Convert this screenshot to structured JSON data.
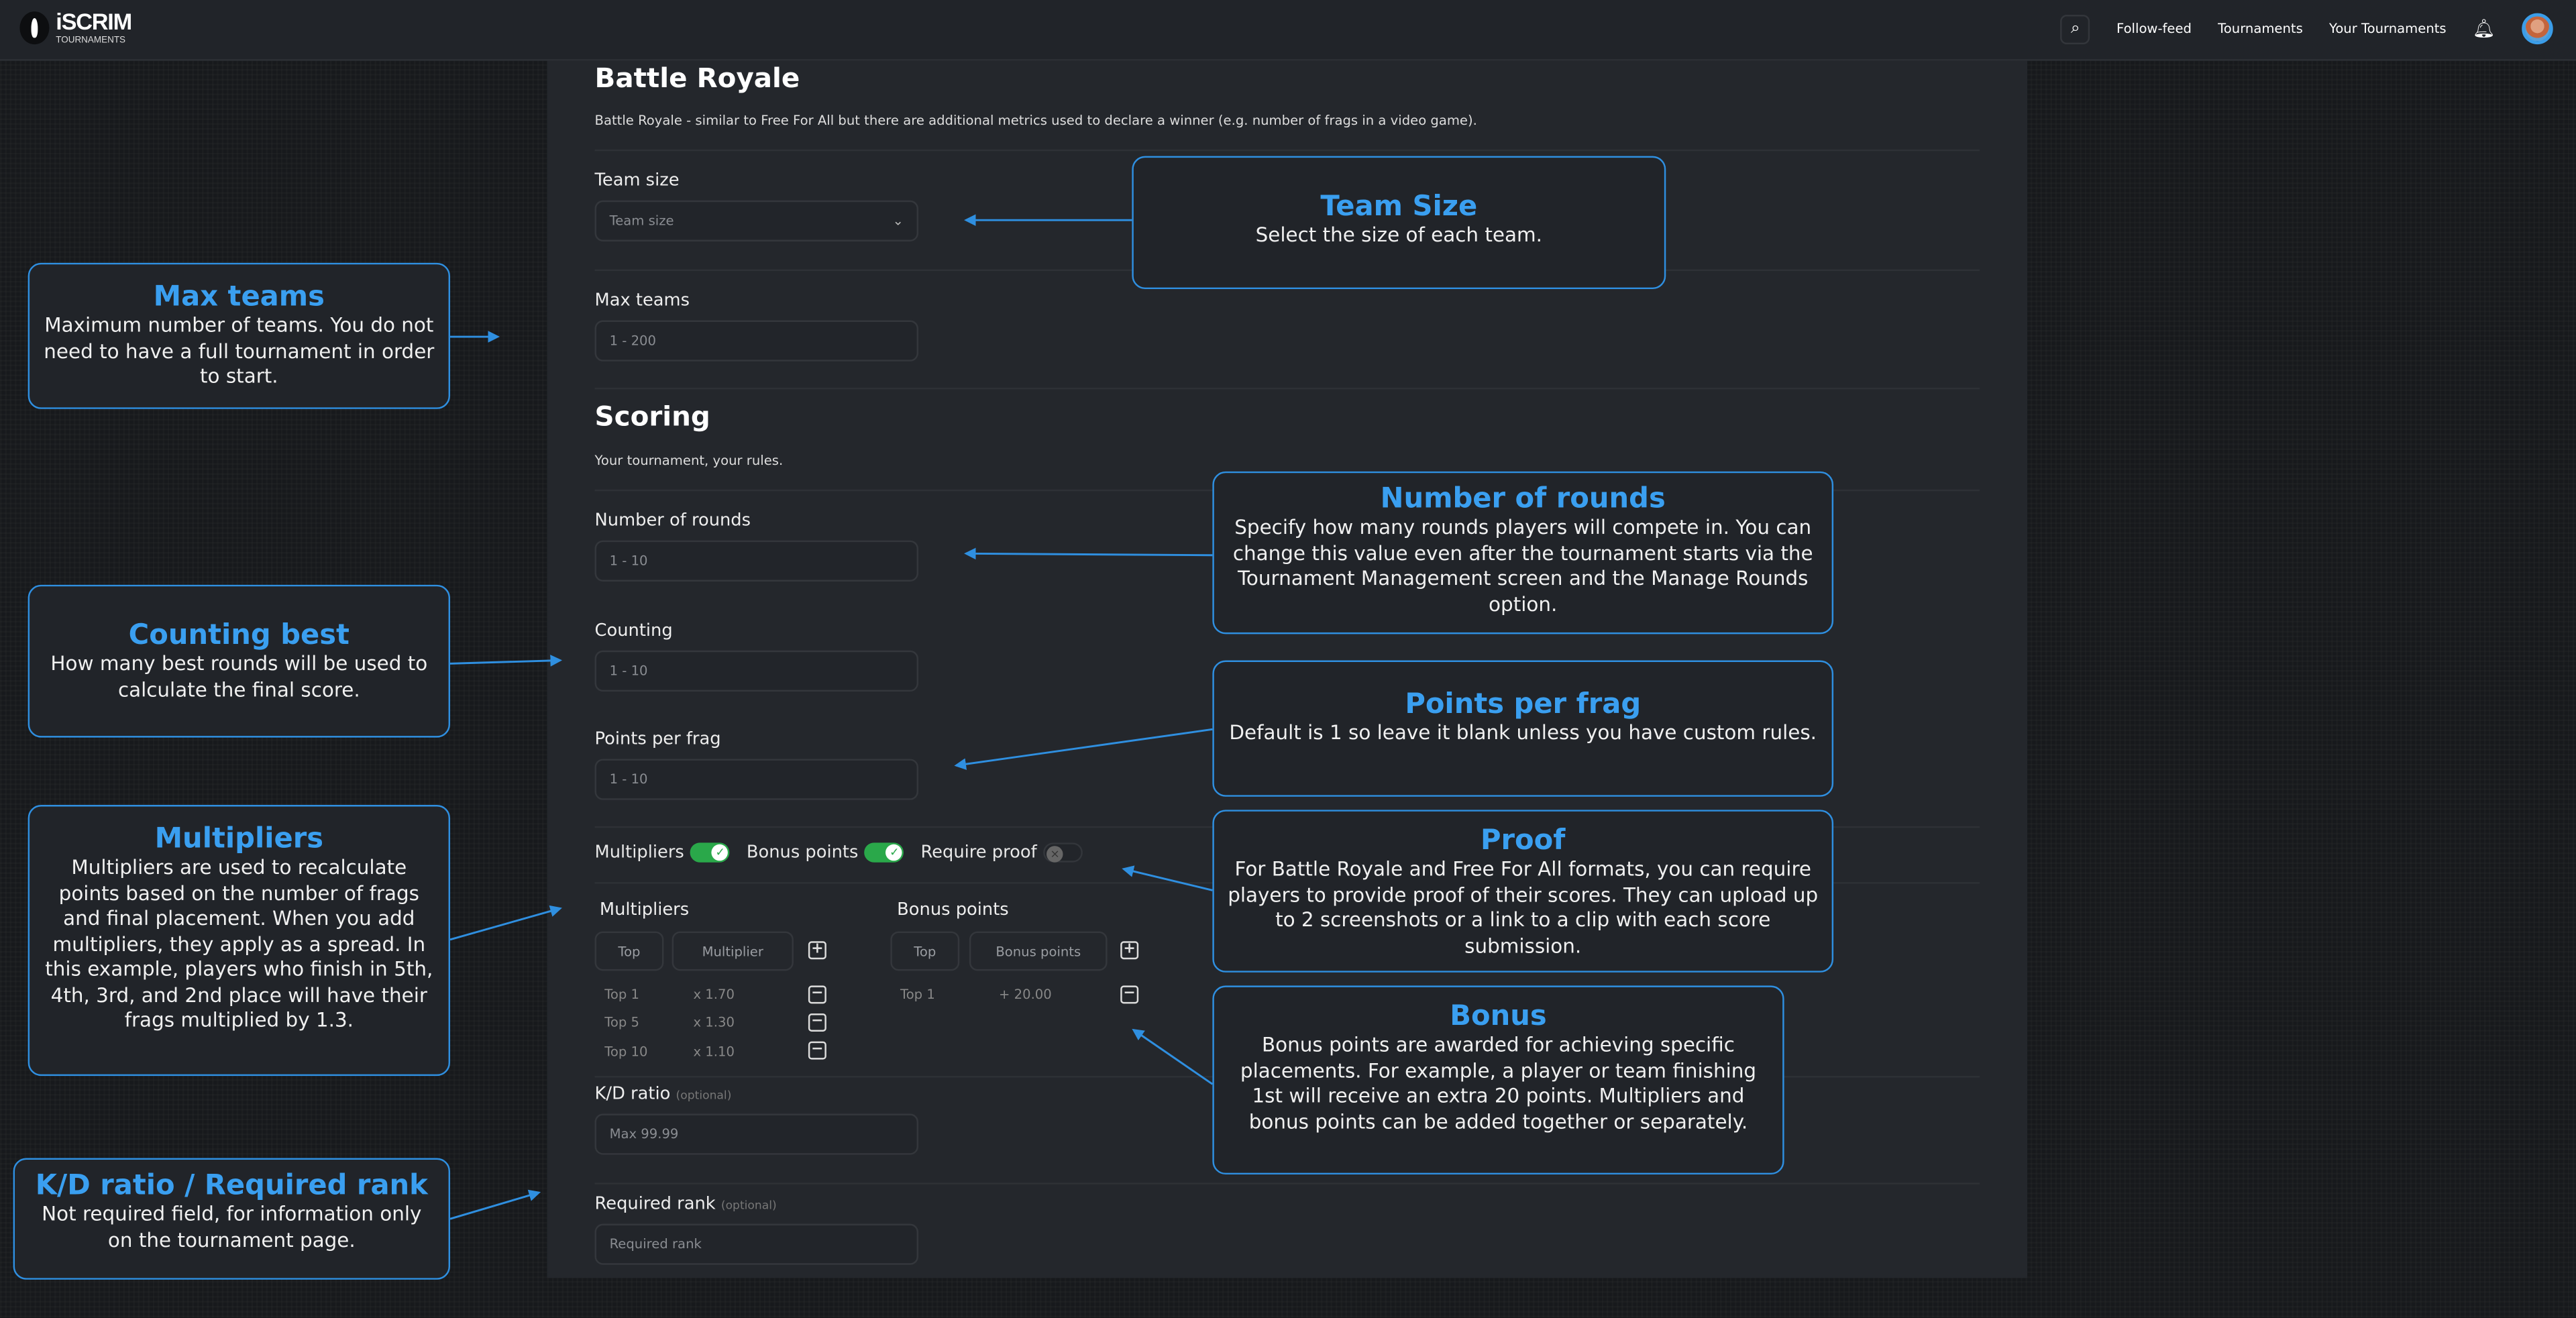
{
  "header": {
    "logo_main": "iSCRIM",
    "logo_sub": "TOURNAMENTS",
    "nav": [
      "Follow-feed",
      "Tournaments",
      "Your Tournaments"
    ],
    "icons": [
      "search-icon",
      "bell-icon",
      "avatar"
    ]
  },
  "form": {
    "title": "Battle Royale",
    "description": "Battle Royale - similar to Free For All but there are additional metrics used to declare a winner (e.g. number of frags in a video game).",
    "team_size": {
      "label": "Team size",
      "placeholder": "Team size"
    },
    "max_teams": {
      "label": "Max teams",
      "placeholder": "1 - 200"
    },
    "scoring_title": "Scoring",
    "scoring_sub": "Your tournament, your rules.",
    "rounds": {
      "label": "Number of rounds",
      "placeholder": "1 - 10"
    },
    "counting": {
      "label": "Counting",
      "placeholder": "1 - 10"
    },
    "points_per_frag": {
      "label": "Points per frag",
      "placeholder": "1 - 10"
    },
    "toggles": [
      {
        "label": "Multipliers",
        "on": true
      },
      {
        "label": "Bonus points",
        "on": true
      },
      {
        "label": "Require proof",
        "on": false
      }
    ],
    "multipliers": {
      "title": "Multipliers",
      "top_placeholder": "Top",
      "value_placeholder": "Multiplier",
      "rows": [
        {
          "top": "Top 1",
          "value": "x 1.70"
        },
        {
          "top": "Top 5",
          "value": "x 1.30"
        },
        {
          "top": "Top 10",
          "value": "x 1.10"
        }
      ]
    },
    "bonus": {
      "title": "Bonus points",
      "top_placeholder": "Top",
      "value_placeholder": "Bonus points",
      "rows": [
        {
          "top": "Top 1",
          "value": "+ 20.00"
        }
      ]
    },
    "kd": {
      "label": "K/D ratio",
      "optional": "(optional)",
      "placeholder": "Max 99.99"
    },
    "rank": {
      "label": "Required rank",
      "optional": "(optional)",
      "placeholder": "Required rank"
    }
  },
  "callouts": {
    "max_teams": {
      "title": "Max teams",
      "text": "Maximum number of teams. You do not need to have a full tournament in order to start."
    },
    "team_size": {
      "title": "Team Size",
      "text": "Select the size of each team."
    },
    "counting": {
      "title": "Counting best",
      "text": "How many best rounds will be used to calculate the final score."
    },
    "multipliers": {
      "title": "Multipliers",
      "text": "Multipliers are used to recalculate points based on the number of frags and final placement. When you add multipliers, they apply as a spread. In this example, players who finish in 5th, 4th, 3rd, and 2nd place will have their frags multiplied by 1.3."
    },
    "kd": {
      "title": "K/D ratio / Required rank",
      "text": "Not required field, for information only on the tournament page."
    },
    "rounds": {
      "title": "Number of rounds",
      "text": "Specify how many rounds players will compete in. You can change this value even after the tournament starts via the Tournament Management screen and the Manage Rounds option."
    },
    "ppf": {
      "title": "Points per frag",
      "text": "Default is 1 so leave it blank unless you have custom rules."
    },
    "proof": {
      "title": "Proof",
      "text": "For Battle Royale and Free For All formats, you can require players to provide proof of their scores. They can upload up to 2 screenshots or a link to a clip with each score submission."
    },
    "bonus": {
      "title": "Bonus",
      "text": "Bonus points are awarded for achieving specific placements. For example, a player or team finishing 1st will receive an extra 20 points. Multipliers and bonus points can be added together or separately."
    }
  },
  "colors": {
    "accent": "#3a9ff0",
    "toggle_on": "#2aa84a",
    "panel": "#24272c",
    "background": "#17191c"
  }
}
